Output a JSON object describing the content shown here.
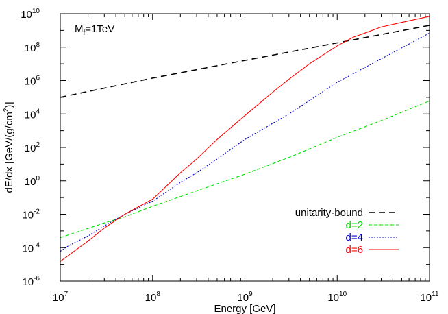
{
  "chart_data": {
    "type": "line",
    "title": "",
    "annotation": {
      "base": "M",
      "subscript": "f",
      "rest": "=1TeV"
    },
    "xlabel": "Energy [GeV]",
    "ylabel": {
      "main": "dE/dx [GeV/(g/cm",
      "sup": "2",
      "tail": ")]"
    },
    "x_scale": "log",
    "y_scale": "log",
    "xlim": [
      10000000.0,
      100000000000.0
    ],
    "ylim": [
      1e-06,
      10000000000.0
    ],
    "grid": false,
    "legend_position": "bottom-right",
    "x_ticks": [
      {
        "value": 10000000.0,
        "base": "10",
        "exp": "7"
      },
      {
        "value": 100000000.0,
        "base": "10",
        "exp": "8"
      },
      {
        "value": 1000000000.0,
        "base": "10",
        "exp": "9"
      },
      {
        "value": 10000000000.0,
        "base": "10",
        "exp": "10"
      },
      {
        "value": 100000000000.0,
        "base": "10",
        "exp": "11"
      }
    ],
    "y_ticks": [
      {
        "value": 1e-06,
        "base": "10",
        "exp": "-6"
      },
      {
        "value": 0.0001,
        "base": "10",
        "exp": "-4"
      },
      {
        "value": 0.01,
        "base": "10",
        "exp": "-2"
      },
      {
        "value": 1.0,
        "base": "10",
        "exp": "0"
      },
      {
        "value": 100.0,
        "base": "10",
        "exp": "2"
      },
      {
        "value": 10000.0,
        "base": "10",
        "exp": "4"
      },
      {
        "value": 1000000.0,
        "base": "10",
        "exp": "6"
      },
      {
        "value": 100000000.0,
        "base": "10",
        "exp": "8"
      },
      {
        "value": 10000000000.0,
        "base": "10",
        "exp": "10"
      }
    ],
    "series": [
      {
        "name": "unitarity-bound",
        "color": "#000000",
        "dash": "long-dash",
        "x": [
          10000000.0,
          100000000.0,
          1000000000.0,
          10000000000.0,
          100000000000.0
        ],
        "y": [
          100000.0,
          1400000.0,
          16000000.0,
          180000000.0,
          2000000000.0
        ]
      },
      {
        "name": "d=2",
        "color": "#00dd00",
        "dash": "dash",
        "x": [
          10000000.0,
          30000000.0,
          50000000.0,
          100000000.0,
          300000000.0,
          1000000000.0,
          3000000000.0,
          10000000000.0,
          30000000000.0,
          100000000000.0
        ],
        "y": [
          0.0004,
          0.003,
          0.007,
          0.03,
          0.25,
          2.5,
          25,
          400,
          4000,
          60000.0
        ]
      },
      {
        "name": "d=4",
        "color": "#0000cc",
        "dash": "dot",
        "x": [
          10000000.0,
          12000000.0,
          20000000.0,
          30000000.0,
          50000000.0,
          100000000.0,
          200000000.0,
          300000000.0,
          500000000.0,
          1000000000.0,
          3000000000.0,
          10000000000.0,
          30000000000.0,
          100000000000.0
        ],
        "y": [
          6e-05,
          0.00012,
          0.0005,
          0.002,
          0.01,
          0.06,
          0.8,
          3,
          20,
          300,
          10000.0,
          800000.0,
          20000000.0,
          700000000.0
        ]
      },
      {
        "name": "d=6",
        "color": "#ff0000",
        "dash": "solid",
        "x": [
          10000000.0,
          20000000.0,
          30000000.0,
          50000000.0,
          100000000.0,
          200000000.0,
          300000000.0,
          500000000.0,
          1000000000.0,
          2000000000.0,
          3000000000.0,
          5000000000.0,
          10000000000.0,
          15000000000.0,
          20000000000.0,
          30000000000.0,
          50000000000.0,
          100000000000.0
        ],
        "y": [
          1.5e-05,
          0.00025,
          0.0015,
          0.01,
          0.08,
          3,
          20,
          300,
          8000,
          200000.0,
          1200000.0,
          10000000.0,
          120000000.0,
          400000000.0,
          700000000.0,
          1600000000.0,
          3000000000.0,
          7000000000.0
        ]
      }
    ]
  }
}
